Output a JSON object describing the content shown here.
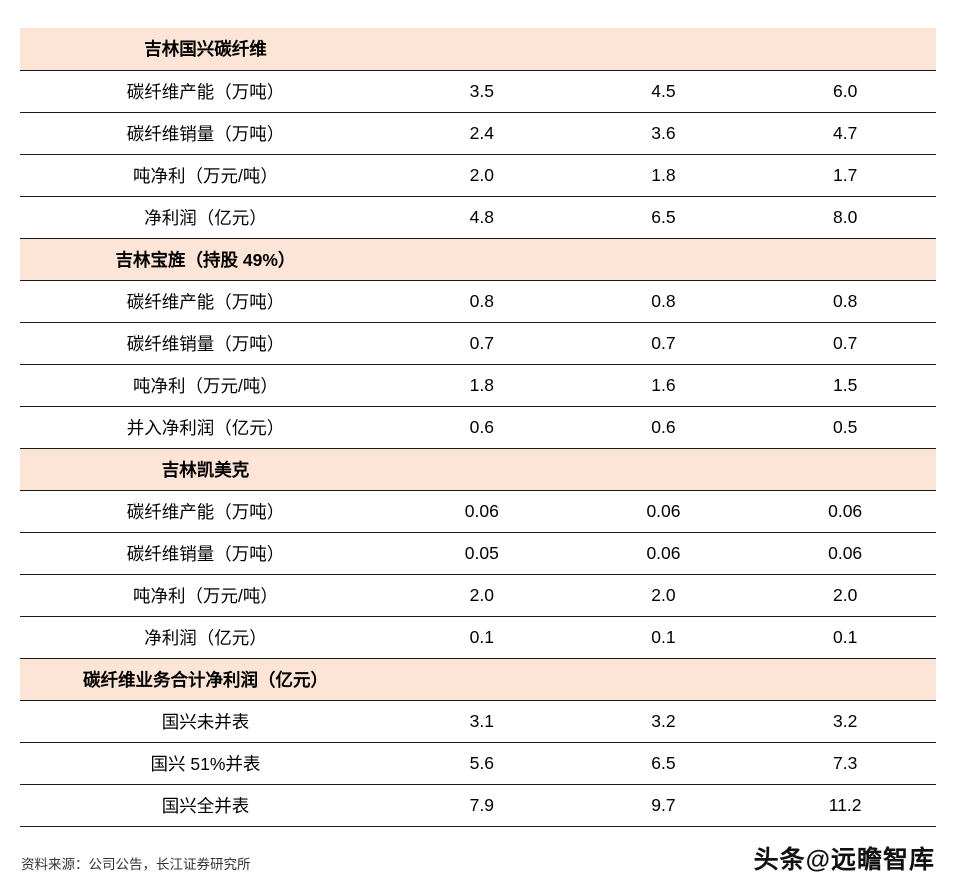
{
  "table": {
    "sections": [
      {
        "header": "吉林国兴碳纤维",
        "rows": [
          {
            "label": "碳纤维产能（万吨）",
            "values": [
              "3.5",
              "4.5",
              "6.0"
            ]
          },
          {
            "label": "碳纤维销量（万吨）",
            "values": [
              "2.4",
              "3.6",
              "4.7"
            ]
          },
          {
            "label": "吨净利（万元/吨）",
            "values": [
              "2.0",
              "1.8",
              "1.7"
            ]
          },
          {
            "label": "净利润（亿元）",
            "values": [
              "4.8",
              "6.5",
              "8.0"
            ]
          }
        ]
      },
      {
        "header": "吉林宝旌（持股 49%）",
        "rows": [
          {
            "label": "碳纤维产能（万吨）",
            "values": [
              "0.8",
              "0.8",
              "0.8"
            ]
          },
          {
            "label": "碳纤维销量（万吨）",
            "values": [
              "0.7",
              "0.7",
              "0.7"
            ]
          },
          {
            "label": "吨净利（万元/吨）",
            "values": [
              "1.8",
              "1.6",
              "1.5"
            ]
          },
          {
            "label": "并入净利润（亿元）",
            "values": [
              "0.6",
              "0.6",
              "0.5"
            ]
          }
        ]
      },
      {
        "header": "吉林凯美克",
        "rows": [
          {
            "label": "碳纤维产能（万吨）",
            "values": [
              "0.06",
              "0.06",
              "0.06"
            ]
          },
          {
            "label": "碳纤维销量（万吨）",
            "values": [
              "0.05",
              "0.06",
              "0.06"
            ]
          },
          {
            "label": "吨净利（万元/吨）",
            "values": [
              "2.0",
              "2.0",
              "2.0"
            ]
          },
          {
            "label": "净利润（亿元）",
            "values": [
              "0.1",
              "0.1",
              "0.1"
            ]
          }
        ]
      },
      {
        "header": "碳纤维业务合计净利润（亿元）",
        "rows": [
          {
            "label": "国兴未并表",
            "values": [
              "3.1",
              "3.2",
              "3.2"
            ]
          },
          {
            "label": "国兴 51%并表",
            "values": [
              "5.6",
              "6.5",
              "7.3"
            ]
          },
          {
            "label": "国兴全并表",
            "values": [
              "7.9",
              "9.7",
              "11.2"
            ]
          }
        ]
      }
    ]
  },
  "footer": {
    "source": "资料来源：公司公告，长江证券研究所",
    "watermark": "头条@远瞻智库"
  },
  "colors": {
    "section_bg": "#fce4d6",
    "rule": "#1a1a1a"
  }
}
